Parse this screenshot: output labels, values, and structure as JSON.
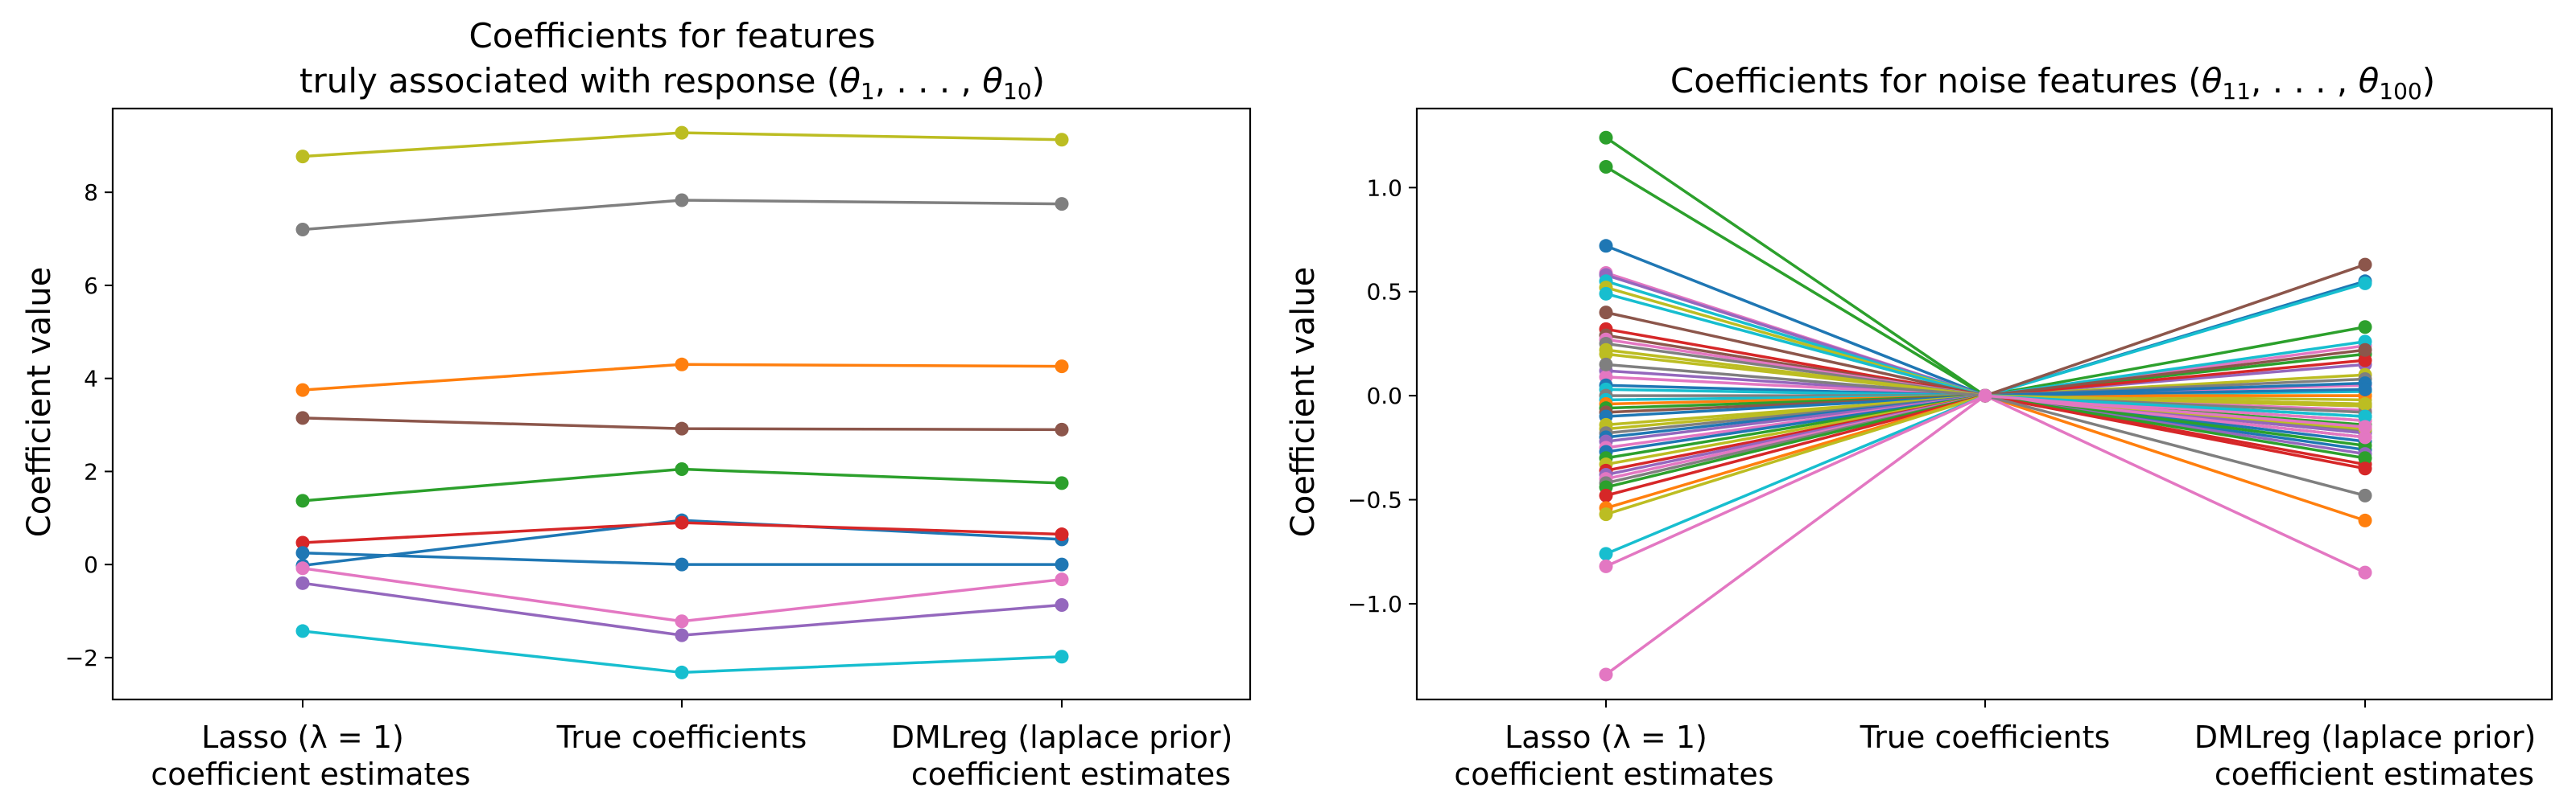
{
  "chart_data": [
    {
      "type": "line",
      "title_line1": "Coefficients for features",
      "title_line2_prefix": "truly associated with response (",
      "title_line2_math": "θ",
      "title_line2_sub1": "1",
      "title_line2_mid": ", . . . , ",
      "title_line2_sub2": "10",
      "title_line2_suffix": ")",
      "ylabel": "Coefficient value",
      "ylim": [
        -2.9,
        9.8
      ],
      "yticks": [
        -2,
        0,
        2,
        4,
        6,
        8
      ],
      "ytick_labels": [
        "−2",
        "0",
        "2",
        "4",
        "6",
        "8"
      ],
      "categories": [
        [
          "Lasso (λ = 1)",
          "coefficient estimates"
        ],
        [
          "True coefficients"
        ],
        [
          "DMLreg (laplace prior)",
          "coefficient estimates"
        ]
      ],
      "series": [
        {
          "color": "#1f77b4",
          "values": [
            -0.02,
            0.95,
            0.54
          ]
        },
        {
          "color": "#ff7f0e",
          "values": [
            3.75,
            4.3,
            4.26
          ]
        },
        {
          "color": "#2ca02c",
          "values": [
            1.37,
            2.05,
            1.75
          ]
        },
        {
          "color": "#d62728",
          "values": [
            0.47,
            0.9,
            0.65
          ]
        },
        {
          "color": "#9467bd",
          "values": [
            -0.4,
            -1.52,
            -0.87
          ]
        },
        {
          "color": "#8c564b",
          "values": [
            3.15,
            2.92,
            2.9
          ]
        },
        {
          "color": "#e377c2",
          "values": [
            -0.08,
            -1.22,
            -0.32
          ]
        },
        {
          "color": "#7f7f7f",
          "values": [
            7.2,
            7.83,
            7.75
          ]
        },
        {
          "color": "#bcbd22",
          "values": [
            8.77,
            9.28,
            9.13
          ]
        },
        {
          "color": "#17becf",
          "values": [
            -1.43,
            -2.32,
            -1.98
          ]
        },
        {
          "color": "#1f77b4",
          "values": [
            0.25,
            0.0,
            0.0
          ]
        }
      ]
    },
    {
      "type": "line",
      "title_line1": "",
      "title_line2_prefix": "Coefficients for noise features (",
      "title_line2_math": "θ",
      "title_line2_sub1": "11",
      "title_line2_mid": ", . . . , ",
      "title_line2_sub2": "100",
      "title_line2_suffix": ")",
      "ylabel": "Coefficient value",
      "ylim": [
        -1.46,
        1.38
      ],
      "yticks": [
        -1.0,
        -0.5,
        0.0,
        0.5,
        1.0
      ],
      "ytick_labels": [
        "−1.0",
        "−0.5",
        "0.0",
        "0.5",
        "1.0"
      ],
      "categories": [
        [
          "Lasso (λ = 1)",
          "coefficient estimates"
        ],
        [
          "True coefficients"
        ],
        [
          "DMLreg (laplace prior)",
          "coefficient estimates"
        ]
      ],
      "series": [
        {
          "color": "#2ca02c",
          "values": [
            1.24,
            0,
            0.33
          ]
        },
        {
          "color": "#2ca02c",
          "values": [
            1.1,
            0,
            0.2
          ]
        },
        {
          "color": "#1f77b4",
          "values": [
            0.72,
            0,
            0.55
          ]
        },
        {
          "color": "#e377c2",
          "values": [
            0.59,
            0,
            0.24
          ]
        },
        {
          "color": "#9467bd",
          "values": [
            0.58,
            0,
            0.15
          ]
        },
        {
          "color": "#17becf",
          "values": [
            0.55,
            0,
            0.54
          ]
        },
        {
          "color": "#bcbd22",
          "values": [
            0.52,
            0,
            0.1
          ]
        },
        {
          "color": "#17becf",
          "values": [
            0.49,
            0,
            0.26
          ]
        },
        {
          "color": "#8c564b",
          "values": [
            0.4,
            0,
            0.63
          ]
        },
        {
          "color": "#d62728",
          "values": [
            0.32,
            0,
            0.17
          ]
        },
        {
          "color": "#8c564b",
          "values": [
            0.29,
            0,
            0.22
          ]
        },
        {
          "color": "#e377c2",
          "values": [
            0.27,
            0,
            0.05
          ]
        },
        {
          "color": "#7f7f7f",
          "values": [
            0.25,
            0,
            0.08
          ]
        },
        {
          "color": "#bcbd22",
          "values": [
            0.22,
            0,
            0.0
          ]
        },
        {
          "color": "#bcbd22",
          "values": [
            0.2,
            0,
            -0.02
          ]
        },
        {
          "color": "#9467bd",
          "values": [
            0.12,
            0,
            -0.05
          ]
        },
        {
          "color": "#e377c2",
          "values": [
            0.09,
            0,
            -0.07
          ]
        },
        {
          "color": "#1f77b4",
          "values": [
            0.05,
            0,
            0.06
          ]
        },
        {
          "color": "#17becf",
          "values": [
            0.03,
            0,
            -0.1
          ]
        },
        {
          "color": "#7f7f7f",
          "values": [
            0.0,
            0,
            -0.04
          ]
        },
        {
          "color": "#17becf",
          "values": [
            -0.02,
            0,
            0.02
          ]
        },
        {
          "color": "#ff7f0e",
          "values": [
            -0.04,
            0,
            0.0
          ]
        },
        {
          "color": "#2ca02c",
          "values": [
            -0.06,
            0,
            -0.14
          ]
        },
        {
          "color": "#8c564b",
          "values": [
            -0.08,
            0,
            -0.2
          ]
        },
        {
          "color": "#1f77b4",
          "values": [
            -0.1,
            0,
            0.03
          ]
        },
        {
          "color": "#bcbd22",
          "values": [
            -0.14,
            0,
            -0.05
          ]
        },
        {
          "color": "#bcbd22",
          "values": [
            -0.16,
            0,
            -0.12
          ]
        },
        {
          "color": "#7f7f7f",
          "values": [
            -0.18,
            0,
            -0.17
          ]
        },
        {
          "color": "#1f77b4",
          "values": [
            -0.2,
            0,
            -0.22
          ]
        },
        {
          "color": "#9467bd",
          "values": [
            -0.22,
            0,
            -0.18
          ]
        },
        {
          "color": "#e377c2",
          "values": [
            -0.25,
            0,
            -0.12
          ]
        },
        {
          "color": "#1f77b4",
          "values": [
            -0.27,
            0,
            -0.26
          ]
        },
        {
          "color": "#2ca02c",
          "values": [
            -0.3,
            0,
            -0.24
          ]
        },
        {
          "color": "#bcbd22",
          "values": [
            -0.33,
            0,
            -0.16
          ]
        },
        {
          "color": "#d62728",
          "values": [
            -0.36,
            0,
            -0.33
          ]
        },
        {
          "color": "#9467bd",
          "values": [
            -0.38,
            0,
            -0.28
          ]
        },
        {
          "color": "#e377c2",
          "values": [
            -0.4,
            0,
            -0.2
          ]
        },
        {
          "color": "#7f7f7f",
          "values": [
            -0.42,
            0,
            -0.08
          ]
        },
        {
          "color": "#2ca02c",
          "values": [
            -0.44,
            0,
            -0.3
          ]
        },
        {
          "color": "#d62728",
          "values": [
            -0.48,
            0,
            -0.35
          ]
        },
        {
          "color": "#ff7f0e",
          "values": [
            -0.54,
            0,
            -0.6
          ]
        },
        {
          "color": "#bcbd22",
          "values": [
            -0.57,
            0,
            -0.04
          ]
        },
        {
          "color": "#17becf",
          "values": [
            -0.76,
            0,
            -0.1
          ]
        },
        {
          "color": "#e377c2",
          "values": [
            -0.82,
            0,
            -0.85
          ]
        },
        {
          "color": "#7f7f7f",
          "values": [
            0.15,
            0,
            -0.48
          ]
        },
        {
          "color": "#e377c2",
          "values": [
            -1.34,
            0,
            -0.15
          ]
        }
      ]
    }
  ]
}
